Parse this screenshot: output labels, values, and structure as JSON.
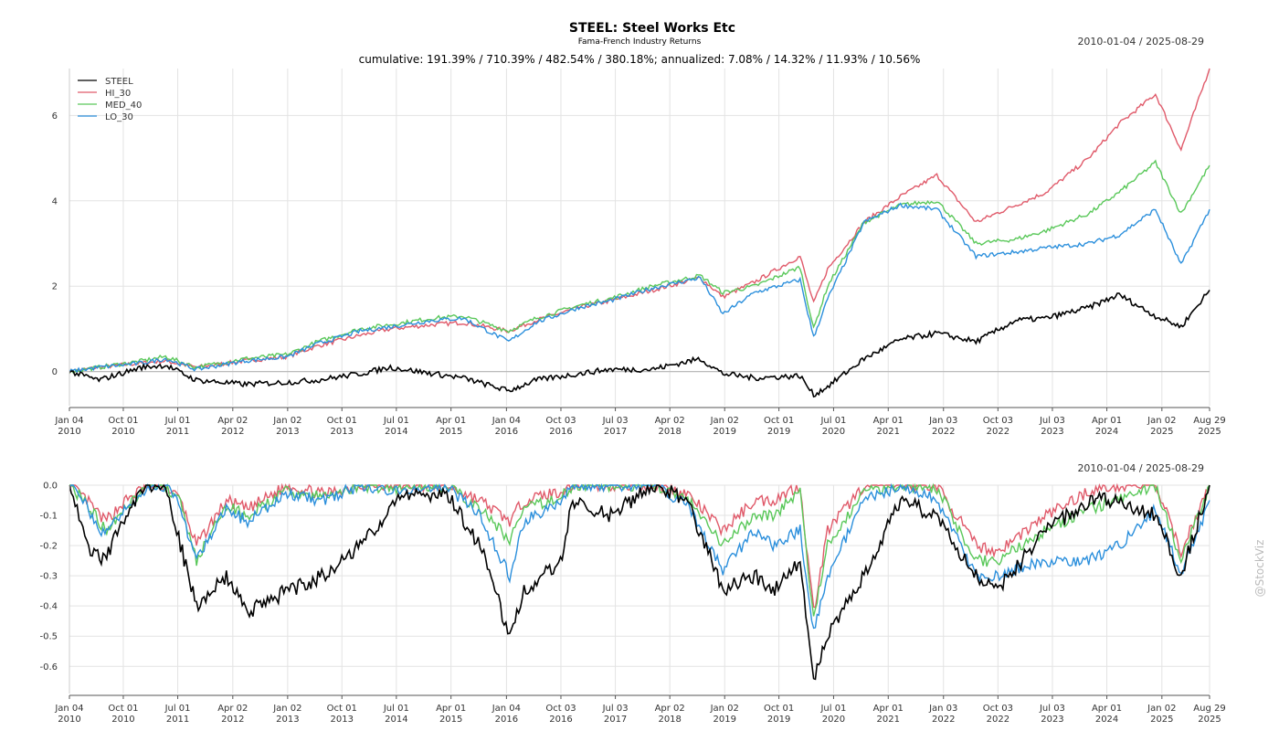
{
  "title": "STEEL: Steel Works Etc",
  "subtitle": "Fama-French Industry Returns",
  "cumulative_line": "cumulative: 191.39% / 710.39% / 482.54% / 380.18%; annualized: 7.08% / 14.32% / 11.93% / 10.56%",
  "date_range": "2010-01-04 / 2025-08-29",
  "watermark": "@StockViz",
  "colors": {
    "STEEL": "#000000",
    "HI_30": "#e05a6a",
    "MED_40": "#5ac85a",
    "LO_30": "#2b8fdc"
  },
  "chart_data": [
    {
      "type": "line",
      "panel": "cumulative",
      "ylim": [
        -0.8,
        7.1
      ],
      "yticks": [
        "0",
        "2",
        "4",
        "6"
      ],
      "ytick_values": [
        0,
        2,
        4,
        6
      ],
      "legend": "top-left",
      "grid": true,
      "x_ticks": [
        {
          "date": "2010-01-04",
          "l1": "Jan 04",
          "l2": "2010"
        },
        {
          "date": "2010-10-01",
          "l1": "Oct 01",
          "l2": "2010"
        },
        {
          "date": "2011-07-01",
          "l1": "Jul 01",
          "l2": "2011"
        },
        {
          "date": "2012-04-02",
          "l1": "Apr 02",
          "l2": "2012"
        },
        {
          "date": "2013-01-02",
          "l1": "Jan 02",
          "l2": "2013"
        },
        {
          "date": "2013-10-01",
          "l1": "Oct 01",
          "l2": "2013"
        },
        {
          "date": "2014-07-01",
          "l1": "Jul 01",
          "l2": "2014"
        },
        {
          "date": "2015-04-01",
          "l1": "Apr 01",
          "l2": "2015"
        },
        {
          "date": "2016-01-04",
          "l1": "Jan 04",
          "l2": "2016"
        },
        {
          "date": "2016-10-03",
          "l1": "Oct 03",
          "l2": "2016"
        },
        {
          "date": "2017-07-03",
          "l1": "Jul 03",
          "l2": "2017"
        },
        {
          "date": "2018-04-02",
          "l1": "Apr 02",
          "l2": "2018"
        },
        {
          "date": "2019-01-02",
          "l1": "Jan 02",
          "l2": "2019"
        },
        {
          "date": "2019-10-01",
          "l1": "Oct 01",
          "l2": "2019"
        },
        {
          "date": "2020-07-01",
          "l1": "Jul 01",
          "l2": "2020"
        },
        {
          "date": "2021-04-01",
          "l1": "Apr 01",
          "l2": "2021"
        },
        {
          "date": "2022-01-03",
          "l1": "Jan 03",
          "l2": "2022"
        },
        {
          "date": "2022-10-03",
          "l1": "Oct 03",
          "l2": "2022"
        },
        {
          "date": "2023-07-03",
          "l1": "Jul 03",
          "l2": "2023"
        },
        {
          "date": "2024-04-01",
          "l1": "Apr 01",
          "l2": "2024"
        },
        {
          "date": "2025-01-02",
          "l1": "Jan 02",
          "l2": "2025"
        },
        {
          "date": "2025-08-29",
          "l1": "Aug 29",
          "l2": "2025"
        }
      ],
      "x": [
        "2010-01-04",
        "2010-06-01",
        "2011-01-01",
        "2011-05-01",
        "2011-10-01",
        "2012-06-01",
        "2013-01-01",
        "2013-06-01",
        "2014-01-01",
        "2014-06-01",
        "2015-01-01",
        "2015-06-01",
        "2016-01-15",
        "2016-06-01",
        "2017-01-01",
        "2017-06-01",
        "2018-01-01",
        "2018-09-01",
        "2018-12-24",
        "2019-06-01",
        "2020-01-15",
        "2020-03-23",
        "2020-06-01",
        "2020-12-01",
        "2021-06-01",
        "2021-12-01",
        "2022-06-15",
        "2023-01-01",
        "2023-06-01",
        "2024-01-01",
        "2024-06-01",
        "2024-12-01",
        "2025-04-08",
        "2025-08-29"
      ],
      "series": [
        {
          "name": "STEEL",
          "values": [
            0.0,
            -0.2,
            0.1,
            0.15,
            -0.2,
            -0.3,
            -0.25,
            -0.2,
            -0.05,
            0.1,
            -0.05,
            -0.15,
            -0.45,
            -0.2,
            -0.05,
            0.05,
            0.05,
            0.3,
            -0.05,
            -0.15,
            -0.1,
            -0.55,
            -0.35,
            0.3,
            0.75,
            0.9,
            0.7,
            1.2,
            1.25,
            1.5,
            1.8,
            1.3,
            1.05,
            1.91
          ]
        },
        {
          "name": "HI_30",
          "values": [
            0.0,
            0.1,
            0.2,
            0.25,
            0.1,
            0.25,
            0.35,
            0.6,
            0.85,
            1.0,
            1.1,
            1.15,
            0.95,
            1.2,
            1.5,
            1.65,
            1.9,
            2.2,
            1.75,
            2.1,
            2.7,
            1.6,
            2.4,
            3.5,
            4.1,
            4.6,
            3.5,
            3.9,
            4.2,
            5.0,
            5.8,
            6.5,
            5.2,
            7.1
          ]
        },
        {
          "name": "MED_40",
          "values": [
            0.0,
            0.1,
            0.25,
            0.35,
            0.1,
            0.3,
            0.4,
            0.7,
            1.0,
            1.1,
            1.25,
            1.3,
            0.95,
            1.25,
            1.55,
            1.7,
            2.0,
            2.25,
            1.85,
            2.0,
            2.45,
            1.0,
            2.0,
            3.5,
            3.9,
            4.0,
            3.0,
            3.1,
            3.3,
            3.7,
            4.2,
            4.9,
            3.7,
            4.83
          ]
        },
        {
          "name": "LO_30",
          "values": [
            0.0,
            0.1,
            0.2,
            0.3,
            0.05,
            0.25,
            0.35,
            0.65,
            0.95,
            1.05,
            1.2,
            1.25,
            0.7,
            1.15,
            1.5,
            1.65,
            1.95,
            2.2,
            1.35,
            1.85,
            2.15,
            0.8,
            1.7,
            3.5,
            3.9,
            3.8,
            2.7,
            2.8,
            2.9,
            3.0,
            3.2,
            3.8,
            2.5,
            3.8
          ]
        }
      ]
    },
    {
      "type": "line",
      "panel": "drawdown",
      "ylim": [
        -0.69,
        0.0
      ],
      "yticks": [
        "0.0",
        "-0.1",
        "-0.2",
        "-0.3",
        "-0.4",
        "-0.5",
        "-0.6"
      ],
      "ytick_values": [
        0.0,
        -0.1,
        -0.2,
        -0.3,
        -0.4,
        -0.5,
        -0.6
      ],
      "grid": true,
      "x": [
        "2010-01-04",
        "2010-04-01",
        "2010-07-01",
        "2010-10-15",
        "2011-02-01",
        "2011-05-01",
        "2011-07-15",
        "2011-10-03",
        "2012-03-01",
        "2012-06-15",
        "2013-01-01",
        "2013-07-01",
        "2014-01-01",
        "2014-07-01",
        "2015-03-01",
        "2015-08-25",
        "2016-01-20",
        "2016-04-01",
        "2016-10-01",
        "2016-12-01",
        "2017-06-01",
        "2018-01-26",
        "2018-07-01",
        "2018-12-24",
        "2019-06-01",
        "2019-09-01",
        "2020-01-15",
        "2020-03-23",
        "2020-06-01",
        "2020-12-01",
        "2021-06-01",
        "2021-12-01",
        "2022-06-15",
        "2022-10-01",
        "2023-06-01",
        "2024-01-01",
        "2024-06-01",
        "2024-12-01",
        "2025-04-08",
        "2025-08-29"
      ],
      "series": [
        {
          "name": "STEEL",
          "values": [
            0.0,
            -0.2,
            -0.25,
            -0.1,
            0.0,
            0.0,
            -0.2,
            -0.4,
            -0.3,
            -0.42,
            -0.35,
            -0.3,
            -0.2,
            -0.05,
            -0.02,
            -0.2,
            -0.5,
            -0.35,
            -0.25,
            -0.05,
            -0.1,
            0.0,
            -0.05,
            -0.35,
            -0.3,
            -0.35,
            -0.25,
            -0.65,
            -0.5,
            -0.3,
            -0.05,
            -0.1,
            -0.3,
            -0.35,
            -0.15,
            -0.05,
            -0.05,
            -0.1,
            -0.3,
            0.0
          ]
        },
        {
          "name": "HI_30",
          "values": [
            0.0,
            -0.05,
            -0.12,
            -0.05,
            0.0,
            0.0,
            -0.05,
            -0.2,
            -0.05,
            -0.08,
            0.0,
            -0.03,
            0.0,
            0.0,
            0.0,
            -0.05,
            -0.12,
            -0.05,
            -0.02,
            0.0,
            0.0,
            0.0,
            -0.03,
            -0.15,
            -0.05,
            -0.05,
            0.0,
            -0.42,
            -0.15,
            0.0,
            0.0,
            0.0,
            -0.2,
            -0.22,
            -0.1,
            -0.02,
            0.0,
            0.0,
            -0.22,
            0.0
          ]
        },
        {
          "name": "MED_40",
          "values": [
            0.0,
            -0.06,
            -0.15,
            -0.07,
            0.0,
            0.0,
            -0.06,
            -0.25,
            -0.07,
            -0.1,
            -0.02,
            -0.04,
            0.0,
            -0.01,
            0.0,
            -0.08,
            -0.18,
            -0.08,
            -0.04,
            0.0,
            0.0,
            0.0,
            -0.05,
            -0.2,
            -0.1,
            -0.1,
            -0.02,
            -0.45,
            -0.2,
            -0.02,
            0.0,
            -0.01,
            -0.25,
            -0.25,
            -0.15,
            -0.08,
            -0.05,
            0.0,
            -0.25,
            0.0
          ]
        },
        {
          "name": "LO_30",
          "values": [
            0.0,
            -0.07,
            -0.17,
            -0.08,
            0.0,
            0.0,
            -0.08,
            -0.25,
            -0.08,
            -0.12,
            -0.03,
            -0.05,
            0.0,
            -0.02,
            0.0,
            -0.1,
            -0.3,
            -0.12,
            -0.05,
            0.0,
            0.0,
            0.0,
            -0.07,
            -0.28,
            -0.15,
            -0.2,
            -0.15,
            -0.48,
            -0.3,
            -0.05,
            0.0,
            -0.05,
            -0.3,
            -0.3,
            -0.25,
            -0.25,
            -0.2,
            -0.08,
            -0.3,
            -0.05
          ]
        }
      ]
    }
  ]
}
